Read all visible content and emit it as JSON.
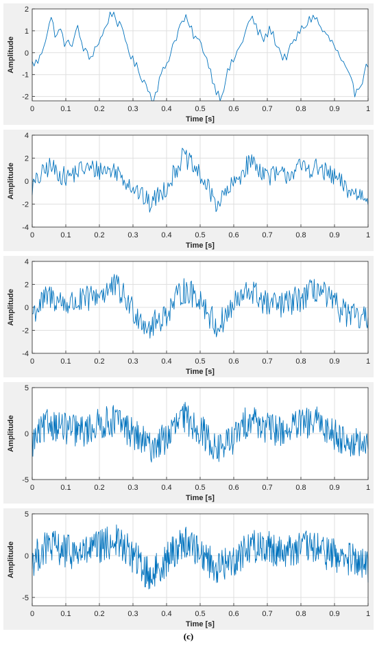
{
  "caption": "(c)",
  "chart_data": [
    {
      "type": "line",
      "title": "",
      "xlabel": "Time [s]",
      "ylabel": "Amplitude",
      "xlim": [
        0,
        1
      ],
      "ylim": [
        -2.2,
        2
      ],
      "xticks": [
        "0",
        "0.1",
        "0.2",
        "0.3",
        "0.4",
        "0.5",
        "0.6",
        "0.7",
        "0.8",
        "0.9",
        "1"
      ],
      "yticks": [
        -2,
        -1,
        0,
        1,
        2
      ],
      "grid": true,
      "line_color": "#0072BD",
      "noise_level": 0.15,
      "series": [
        {
          "x": [
            0,
            0.02,
            0.04,
            0.055,
            0.07,
            0.085,
            0.1,
            0.12,
            0.135,
            0.15,
            0.17,
            0.19,
            0.21,
            0.225,
            0.24,
            0.26,
            0.28,
            0.3,
            0.32,
            0.34,
            0.36,
            0.38,
            0.4,
            0.42,
            0.44,
            0.455,
            0.47,
            0.49,
            0.51,
            0.53,
            0.545,
            0.56,
            0.58,
            0.6,
            0.62,
            0.64,
            0.655,
            0.67,
            0.69,
            0.71,
            0.73,
            0.75,
            0.77,
            0.79,
            0.81,
            0.825,
            0.84,
            0.86,
            0.88,
            0.9,
            0.92,
            0.94,
            0.96,
            0.98,
            1.0
          ],
          "y": [
            -0.5,
            -0.4,
            0.7,
            1.6,
            0.8,
            1.0,
            0.3,
            0.5,
            1.1,
            0.3,
            -0.3,
            0.3,
            0.8,
            1.5,
            1.9,
            1.2,
            0.5,
            -0.4,
            -0.9,
            -1.5,
            -2.2,
            -1.2,
            -0.5,
            0.4,
            1.2,
            1.6,
            1.1,
            0.6,
            0.2,
            -0.8,
            -1.6,
            -2.1,
            -1.0,
            -0.3,
            0.3,
            1.2,
            1.6,
            1.0,
            0.6,
            1.1,
            0.3,
            -0.3,
            0.2,
            0.8,
            1.2,
            1.5,
            1.7,
            1.1,
            0.7,
            0.3,
            -0.4,
            -1.0,
            -1.8,
            -1.3,
            -0.5
          ]
        }
      ]
    },
    {
      "type": "line",
      "title": "",
      "xlabel": "Time [s]",
      "ylabel": "Amplitude",
      "xlim": [
        0,
        1
      ],
      "ylim": [
        -4,
        4
      ],
      "xticks": [
        "0",
        "0.1",
        "0.2",
        "0.3",
        "0.4",
        "0.5",
        "0.6",
        "0.7",
        "0.8",
        "0.9",
        "1"
      ],
      "yticks": [
        -4,
        -2,
        0,
        2,
        4
      ],
      "grid": true,
      "line_color": "#0072BD",
      "noise_level": 0.55,
      "series": [
        {
          "x": [
            0,
            0.05,
            0.1,
            0.15,
            0.2,
            0.25,
            0.3,
            0.35,
            0.4,
            0.45,
            0.5,
            0.55,
            0.6,
            0.65,
            0.7,
            0.75,
            0.8,
            0.85,
            0.9,
            0.95,
            1.0
          ],
          "y": [
            -0.5,
            1.3,
            0.3,
            1.1,
            1.0,
            0.9,
            -0.5,
            -2.0,
            -0.5,
            2.2,
            0.5,
            -2.0,
            -0.3,
            1.8,
            0.5,
            0.5,
            1.2,
            1.1,
            0.3,
            -1.0,
            -1.3
          ]
        }
      ]
    },
    {
      "type": "line",
      "title": "",
      "xlabel": "Time [s]",
      "ylabel": "Amplitude",
      "xlim": [
        0,
        1
      ],
      "ylim": [
        -4,
        4
      ],
      "xticks": [
        "0",
        "0.1",
        "0.2",
        "0.3",
        "0.4",
        "0.5",
        "0.6",
        "0.7",
        "0.8",
        "0.9",
        "1"
      ],
      "yticks": [
        -4,
        -2,
        0,
        2,
        4
      ],
      "grid": true,
      "line_color": "#0072BD",
      "noise_level": 0.75,
      "series": [
        {
          "x": [
            0,
            0.05,
            0.1,
            0.15,
            0.2,
            0.25,
            0.3,
            0.35,
            0.4,
            0.45,
            0.5,
            0.55,
            0.6,
            0.65,
            0.7,
            0.75,
            0.8,
            0.85,
            0.9,
            0.95,
            1.0
          ],
          "y": [
            -0.5,
            1.0,
            0.3,
            0.5,
            1.2,
            1.8,
            -0.2,
            -1.8,
            -0.5,
            1.5,
            0.8,
            -1.8,
            0.2,
            1.5,
            0.2,
            0.2,
            0.8,
            1.6,
            0.2,
            -0.8,
            -1.2
          ]
        }
      ]
    },
    {
      "type": "line",
      "title": "",
      "xlabel": "Time [s]",
      "ylabel": "Amplitude",
      "xlim": [
        0,
        1
      ],
      "ylim": [
        -5,
        5
      ],
      "xticks": [
        "0",
        "0.1",
        "0.2",
        "0.3",
        "0.4",
        "0.5",
        "0.6",
        "0.7",
        "0.8",
        "0.9",
        "1"
      ],
      "yticks": [
        -5,
        0,
        5
      ],
      "grid": true,
      "line_color": "#0072BD",
      "noise_level": 1.1,
      "series": [
        {
          "x": [
            0,
            0.05,
            0.1,
            0.15,
            0.2,
            0.25,
            0.3,
            0.35,
            0.4,
            0.45,
            0.5,
            0.55,
            0.6,
            0.65,
            0.7,
            0.75,
            0.8,
            0.85,
            0.9,
            0.95,
            1.0
          ],
          "y": [
            -1.0,
            1.2,
            0.5,
            0.2,
            1.0,
            1.5,
            0.0,
            -1.5,
            -0.5,
            1.8,
            0.5,
            -1.8,
            -0.5,
            1.8,
            0.5,
            0.3,
            1.0,
            1.2,
            0.0,
            -1.0,
            -1.5
          ]
        }
      ]
    },
    {
      "type": "line",
      "title": "",
      "xlabel": "Time [s]",
      "ylabel": "Amplitude",
      "xlim": [
        0,
        1
      ],
      "ylim": [
        -6,
        5
      ],
      "xticks": [
        "0",
        "0.1",
        "0.2",
        "0.3",
        "0.4",
        "0.5",
        "0.6",
        "0.7",
        "0.8",
        "0.9",
        "1"
      ],
      "yticks": [
        -5,
        0,
        5
      ],
      "grid": true,
      "line_color": "#0072BD",
      "noise_level": 1.3,
      "series": [
        {
          "x": [
            0,
            0.05,
            0.1,
            0.15,
            0.2,
            0.25,
            0.3,
            0.35,
            0.4,
            0.45,
            0.5,
            0.55,
            0.6,
            0.65,
            0.7,
            0.75,
            0.8,
            0.85,
            0.9,
            0.95,
            1.0
          ],
          "y": [
            -0.5,
            1.2,
            0.5,
            0.3,
            1.0,
            1.8,
            0.0,
            -2.5,
            -0.5,
            1.8,
            0.5,
            -1.5,
            -0.5,
            1.2,
            1.0,
            0.5,
            1.0,
            0.8,
            0.0,
            -0.5,
            -1.5
          ]
        }
      ]
    }
  ]
}
